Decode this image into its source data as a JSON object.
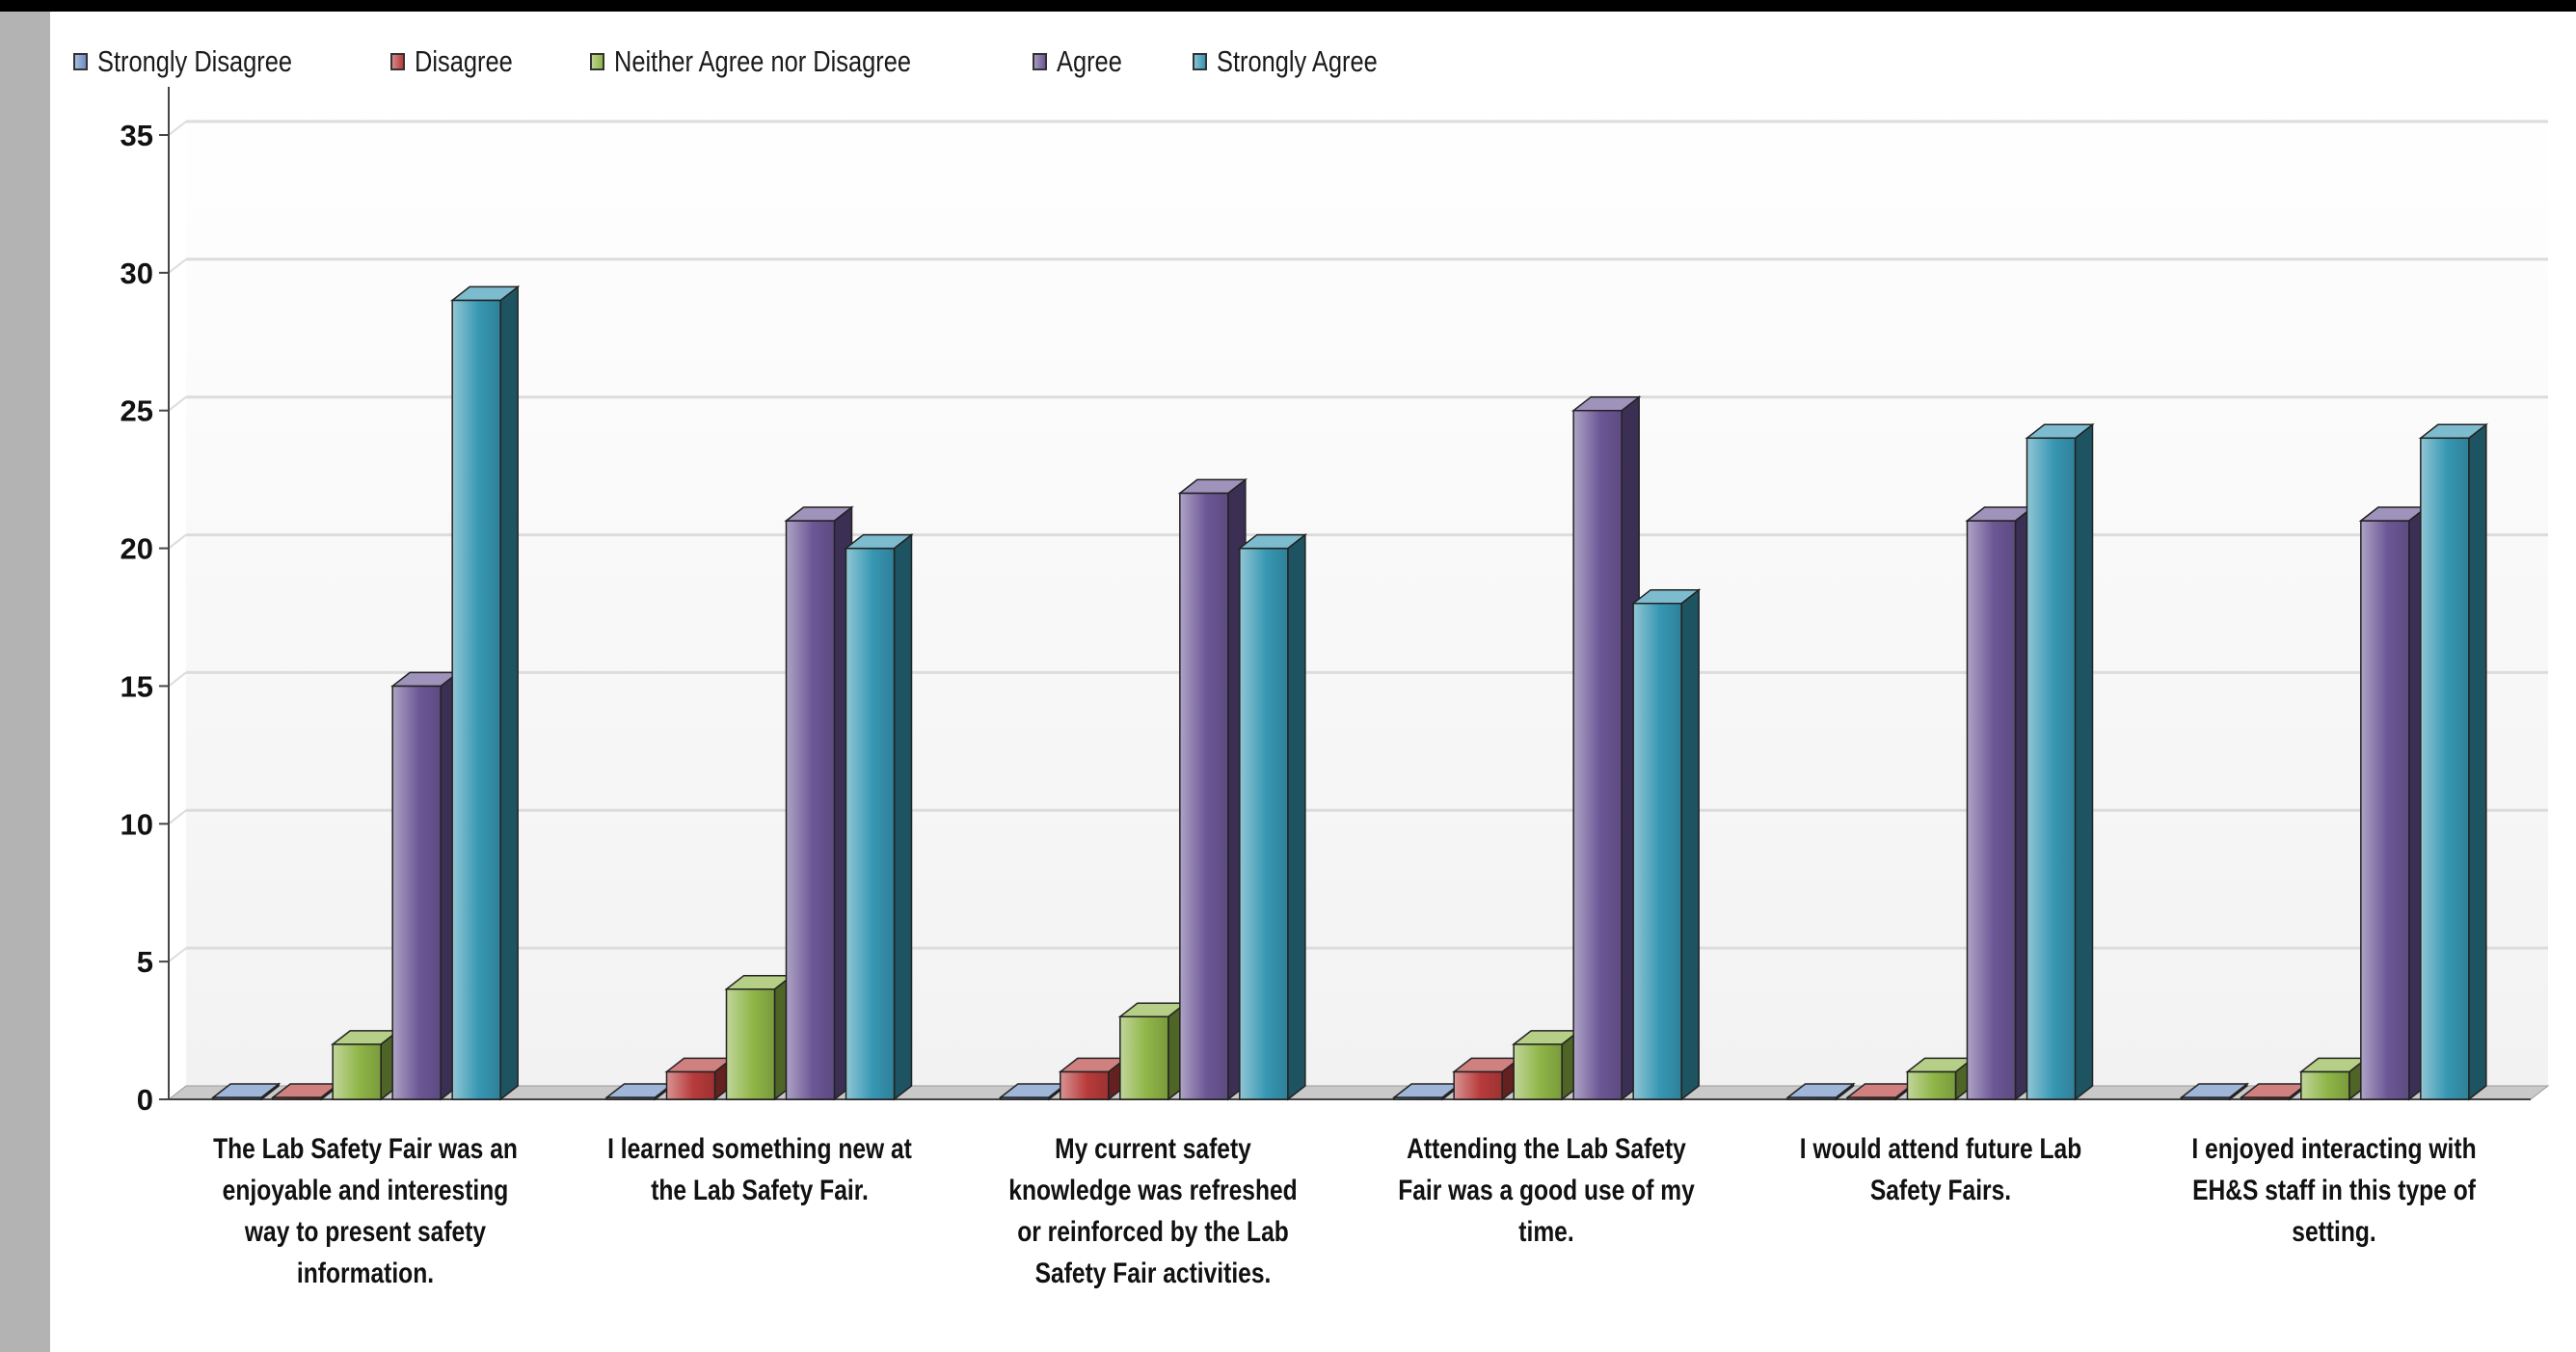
{
  "chart_data": {
    "type": "bar",
    "title": "",
    "xlabel": "",
    "ylabel": "",
    "ylim": [
      0,
      35
    ],
    "yticks": [
      "0",
      "5",
      "10",
      "15",
      "20",
      "25",
      "30",
      "35"
    ],
    "grid": true,
    "legend_position": "top-left",
    "categories": [
      "The Lab Safety Fair was an enjoyable and interesting way to present safety information.",
      "I learned something new at the Lab Safety Fair.",
      "My current safety knowledge was refreshed or reinforced by the Lab Safety Fair activities.",
      "Attending the Lab Safety Fair was a good use of my time.",
      "I would attend future Lab Safety Fairs.",
      "I enjoyed interacting with EH&S staff in this type of setting."
    ],
    "series": [
      {
        "name": "Strongly Disagree",
        "color": "#6d8fc4",
        "values": [
          0,
          0,
          0,
          0,
          0,
          0
        ]
      },
      {
        "name": "Disagree",
        "color": "#b83b3b",
        "values": [
          0,
          1,
          1,
          1,
          0,
          0
        ]
      },
      {
        "name": "Neither Agree nor Disagree",
        "color": "#8fb547",
        "values": [
          2,
          4,
          3,
          2,
          1,
          1
        ]
      },
      {
        "name": "Agree",
        "color": "#6c5796",
        "values": [
          15,
          21,
          22,
          25,
          21,
          21
        ]
      },
      {
        "name": "Strongly Agree",
        "color": "#3797b3",
        "values": [
          29,
          20,
          20,
          18,
          24,
          24
        ]
      }
    ]
  }
}
